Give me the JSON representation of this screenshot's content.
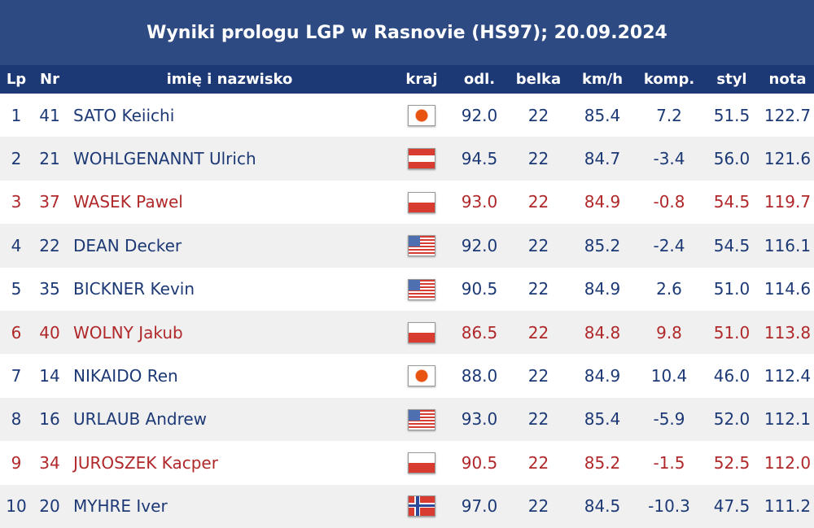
{
  "title": "Wyniki prologu LGP w Rasnovie (HS97); 20.09.2024",
  "colors": {
    "header_bg": "#2d4a82",
    "table_header_bg": "#1d3975",
    "text_default": "#1d3975",
    "text_highlight": "#b0282a"
  },
  "columns": [
    "Lp",
    "Nr",
    "imię i nazwisko",
    "kraj",
    "odl.",
    "belka",
    "km/h",
    "komp.",
    "styl",
    "nota"
  ],
  "rows": [
    {
      "lp": "1",
      "nr": "41",
      "name": "SATO Keiichi",
      "flag": "jpn",
      "odl": "92.0",
      "belka": "22",
      "kmh": "85.4",
      "komp": "7.2",
      "styl": "51.5",
      "nota": "122.7",
      "highlight": false
    },
    {
      "lp": "2",
      "nr": "21",
      "name": "WOHLGENANNT Ulrich",
      "flag": "aut",
      "odl": "94.5",
      "belka": "22",
      "kmh": "84.7",
      "komp": "-3.4",
      "styl": "56.0",
      "nota": "121.6",
      "highlight": false
    },
    {
      "lp": "3",
      "nr": "37",
      "name": "WASEK Pawel",
      "flag": "pol",
      "odl": "93.0",
      "belka": "22",
      "kmh": "84.9",
      "komp": "-0.8",
      "styl": "54.5",
      "nota": "119.7",
      "highlight": true
    },
    {
      "lp": "4",
      "nr": "22",
      "name": "DEAN Decker",
      "flag": "usa",
      "odl": "92.0",
      "belka": "22",
      "kmh": "85.2",
      "komp": "-2.4",
      "styl": "54.5",
      "nota": "116.1",
      "highlight": false
    },
    {
      "lp": "5",
      "nr": "35",
      "name": "BICKNER Kevin",
      "flag": "usa",
      "odl": "90.5",
      "belka": "22",
      "kmh": "84.9",
      "komp": "2.6",
      "styl": "51.0",
      "nota": "114.6",
      "highlight": false
    },
    {
      "lp": "6",
      "nr": "40",
      "name": "WOLNY Jakub",
      "flag": "pol",
      "odl": "86.5",
      "belka": "22",
      "kmh": "84.8",
      "komp": "9.8",
      "styl": "51.0",
      "nota": "113.8",
      "highlight": true
    },
    {
      "lp": "7",
      "nr": "14",
      "name": "NIKAIDO Ren",
      "flag": "jpn",
      "odl": "88.0",
      "belka": "22",
      "kmh": "84.9",
      "komp": "10.4",
      "styl": "46.0",
      "nota": "112.4",
      "highlight": false
    },
    {
      "lp": "8",
      "nr": "16",
      "name": "URLAUB Andrew",
      "flag": "usa",
      "odl": "93.0",
      "belka": "22",
      "kmh": "85.4",
      "komp": "-5.9",
      "styl": "52.0",
      "nota": "112.1",
      "highlight": false
    },
    {
      "lp": "9",
      "nr": "34",
      "name": "JUROSZEK Kacper",
      "flag": "pol",
      "odl": "90.5",
      "belka": "22",
      "kmh": "85.2",
      "komp": "-1.5",
      "styl": "52.5",
      "nota": "112.0",
      "highlight": true
    },
    {
      "lp": "10",
      "nr": "20",
      "name": "MYHRE Iver",
      "flag": "nor",
      "odl": "97.0",
      "belka": "22",
      "kmh": "84.5",
      "komp": "-10.3",
      "styl": "47.5",
      "nota": "111.2",
      "highlight": false
    }
  ]
}
